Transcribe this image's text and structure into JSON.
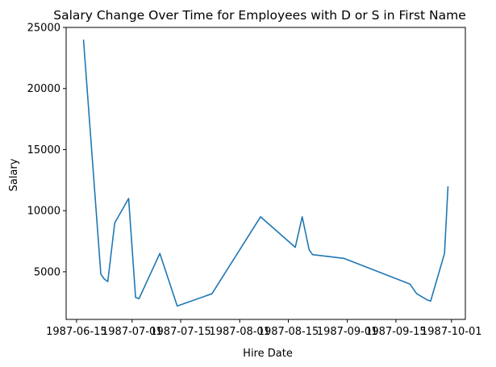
{
  "chart_data": {
    "type": "line",
    "title": "Salary Change Over Time for Employees with D or S in First Name",
    "xlabel": "Hire Date",
    "ylabel": "Salary",
    "x_type": "date",
    "xlim": [
      "1987-06-12",
      "1987-10-05"
    ],
    "ylim": [
      1100,
      25000
    ],
    "x_ticks": [
      "1987-06-15",
      "1987-07-01",
      "1987-07-15",
      "1987-08-01",
      "1987-08-15",
      "1987-09-01",
      "1987-09-15",
      "1987-10-01"
    ],
    "x_tick_labels": [
      "1987-06-15",
      "1987-07-01",
      "1987-07-15",
      "1987-08-01",
      "1987-08-15",
      "1987-09-01",
      "1987-09-15",
      "1987-10-01"
    ],
    "y_ticks": [
      5000,
      10000,
      15000,
      20000,
      25000
    ],
    "y_tick_labels": [
      "5000",
      "10000",
      "15000",
      "20000",
      "25000"
    ],
    "grid": false,
    "legend": "none",
    "line_color": "#1f77b4",
    "series": [
      {
        "x": [
          "1987-06-17",
          "1987-06-22",
          "1987-06-23",
          "1987-06-24",
          "1987-06-26",
          "1987-06-30",
          "1987-07-02",
          "1987-07-03",
          "1987-07-09",
          "1987-07-14",
          "1987-07-24",
          "1987-08-07",
          "1987-08-17",
          "1987-08-19",
          "1987-08-21",
          "1987-08-22",
          "1987-08-31",
          "1987-09-19",
          "1987-09-21",
          "1987-09-24",
          "1987-09-25",
          "1987-09-29",
          "1987-09-30"
        ],
        "y": [
          24000,
          4800,
          4400,
          4200,
          9000,
          11000,
          2900,
          2800,
          6500,
          2200,
          3200,
          9500,
          7000,
          9500,
          6800,
          6400,
          6100,
          4000,
          3200,
          2700,
          2600,
          6500,
          12000
        ]
      }
    ]
  }
}
